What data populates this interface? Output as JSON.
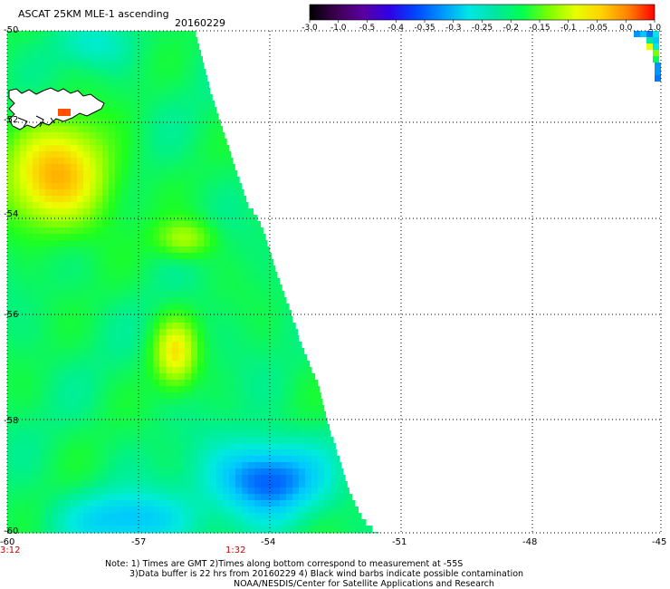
{
  "header": {
    "title": "ASCAT 25KM MLE-1 ascending",
    "date": "20160229"
  },
  "colorbar": {
    "tick_labels": [
      "-3.0",
      "-1.0",
      "-0.5",
      "-0.4",
      "-0.35",
      "-0.3",
      "-0.25",
      "-0.2",
      "-0.15",
      "-0.1",
      "-0.05",
      "0.0",
      "1.0"
    ],
    "colors": [
      "#000000",
      "#3c0050",
      "#5a00a0",
      "#3000e6",
      "#0046ff",
      "#0096ff",
      "#00e6e6",
      "#00e6a0",
      "#00ff50",
      "#78ff00",
      "#e6ff00",
      "#ffd200",
      "#ff8200",
      "#ff0000"
    ]
  },
  "map": {
    "lat_labels": [
      "-50",
      "-52",
      "-54",
      "-56",
      "-58",
      "-60"
    ],
    "lon_labels": [
      "-60",
      "-57",
      "-54",
      "-51",
      "-48",
      "-45"
    ],
    "time_labels": [
      "3:12",
      "1:32"
    ],
    "time_color": "#cc0000",
    "grid_style": "dotted"
  },
  "footer": {
    "note_line1": "Note: 1) Times are GMT 2)Times along bottom correspond to measurement at -55S",
    "note_line2": "3)Data buffer is 22 hrs from 20160229 4) Black wind barbs indicate possible contamination",
    "note_line3": "NOAA/NESDIS/Center for Satellite Applications and Research"
  }
}
